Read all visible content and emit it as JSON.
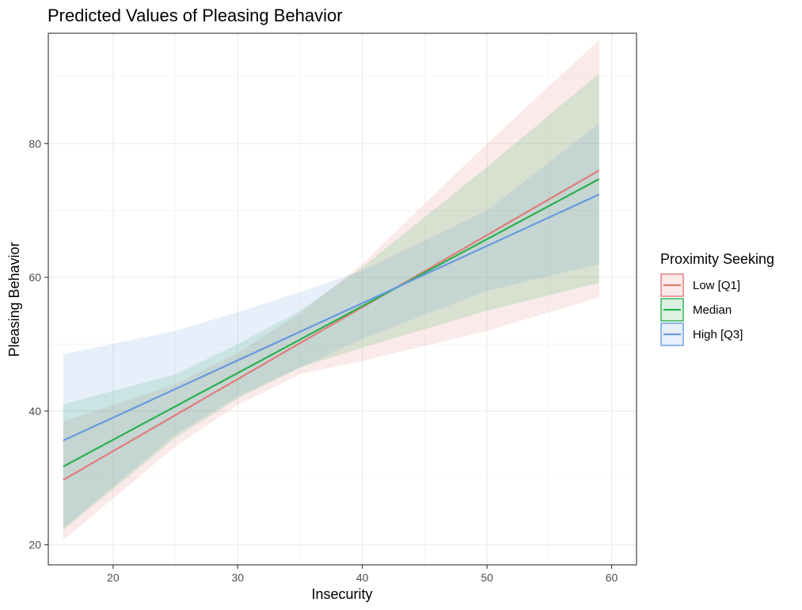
{
  "chart_data": {
    "type": "line",
    "title": "Predicted Values of Pleasing Behavior",
    "xlabel": "Insecurity",
    "ylabel": "Pleasing Behavior",
    "xlim": [
      14.8,
      62.0
    ],
    "ylim": [
      17.0,
      96.5
    ],
    "xticks": [
      20,
      30,
      40,
      50,
      60
    ],
    "yticks": [
      20,
      40,
      60,
      80
    ],
    "grid": true,
    "legend_title": "Proximity Seeking",
    "legend_position": "right",
    "series": [
      {
        "name": "Low [Q1]",
        "color": "#E07B78",
        "x": [
          16,
          59
        ],
        "y": [
          29.7,
          76.0
        ],
        "ci_low": [
          [
            16,
            20.7
          ],
          [
            25,
            34.7
          ],
          [
            30,
            40.9
          ],
          [
            35,
            45.5
          ],
          [
            40,
            47.5
          ],
          [
            50,
            52.0
          ],
          [
            59,
            57.0
          ]
        ],
        "ci_high": [
          [
            16,
            38.4
          ],
          [
            25,
            44.0
          ],
          [
            30,
            48.7
          ],
          [
            35,
            54.6
          ],
          [
            40,
            62.0
          ],
          [
            50,
            80.0
          ],
          [
            59,
            95.5
          ]
        ]
      },
      {
        "name": "Median",
        "color": "#2BB04F",
        "x": [
          16,
          59
        ],
        "y": [
          31.7,
          74.7
        ],
        "ci_low": [
          [
            16,
            22.2
          ],
          [
            25,
            36.0
          ],
          [
            30,
            41.9
          ],
          [
            35,
            46.5
          ],
          [
            40,
            49.5
          ],
          [
            50,
            55.0
          ],
          [
            59,
            59.2
          ]
        ],
        "ci_high": [
          [
            16,
            41.0
          ],
          [
            25,
            45.5
          ],
          [
            30,
            50.0
          ],
          [
            35,
            55.0
          ],
          [
            40,
            61.5
          ],
          [
            50,
            76.5
          ],
          [
            59,
            90.5
          ]
        ]
      },
      {
        "name": "High [Q3]",
        "color": "#6699E0",
        "x": [
          16,
          59
        ],
        "y": [
          35.6,
          72.4
        ],
        "ci_low": [
          [
            16,
            22.5
          ],
          [
            25,
            36.5
          ],
          [
            30,
            42.2
          ],
          [
            35,
            46.5
          ],
          [
            40,
            50.8
          ],
          [
            50,
            58.0
          ],
          [
            59,
            62.0
          ]
        ],
        "ci_high": [
          [
            16,
            48.5
          ],
          [
            25,
            52.0
          ],
          [
            30,
            54.8
          ],
          [
            35,
            57.8
          ],
          [
            40,
            61.0
          ],
          [
            50,
            70.0
          ],
          [
            59,
            83.0
          ]
        ]
      }
    ]
  }
}
